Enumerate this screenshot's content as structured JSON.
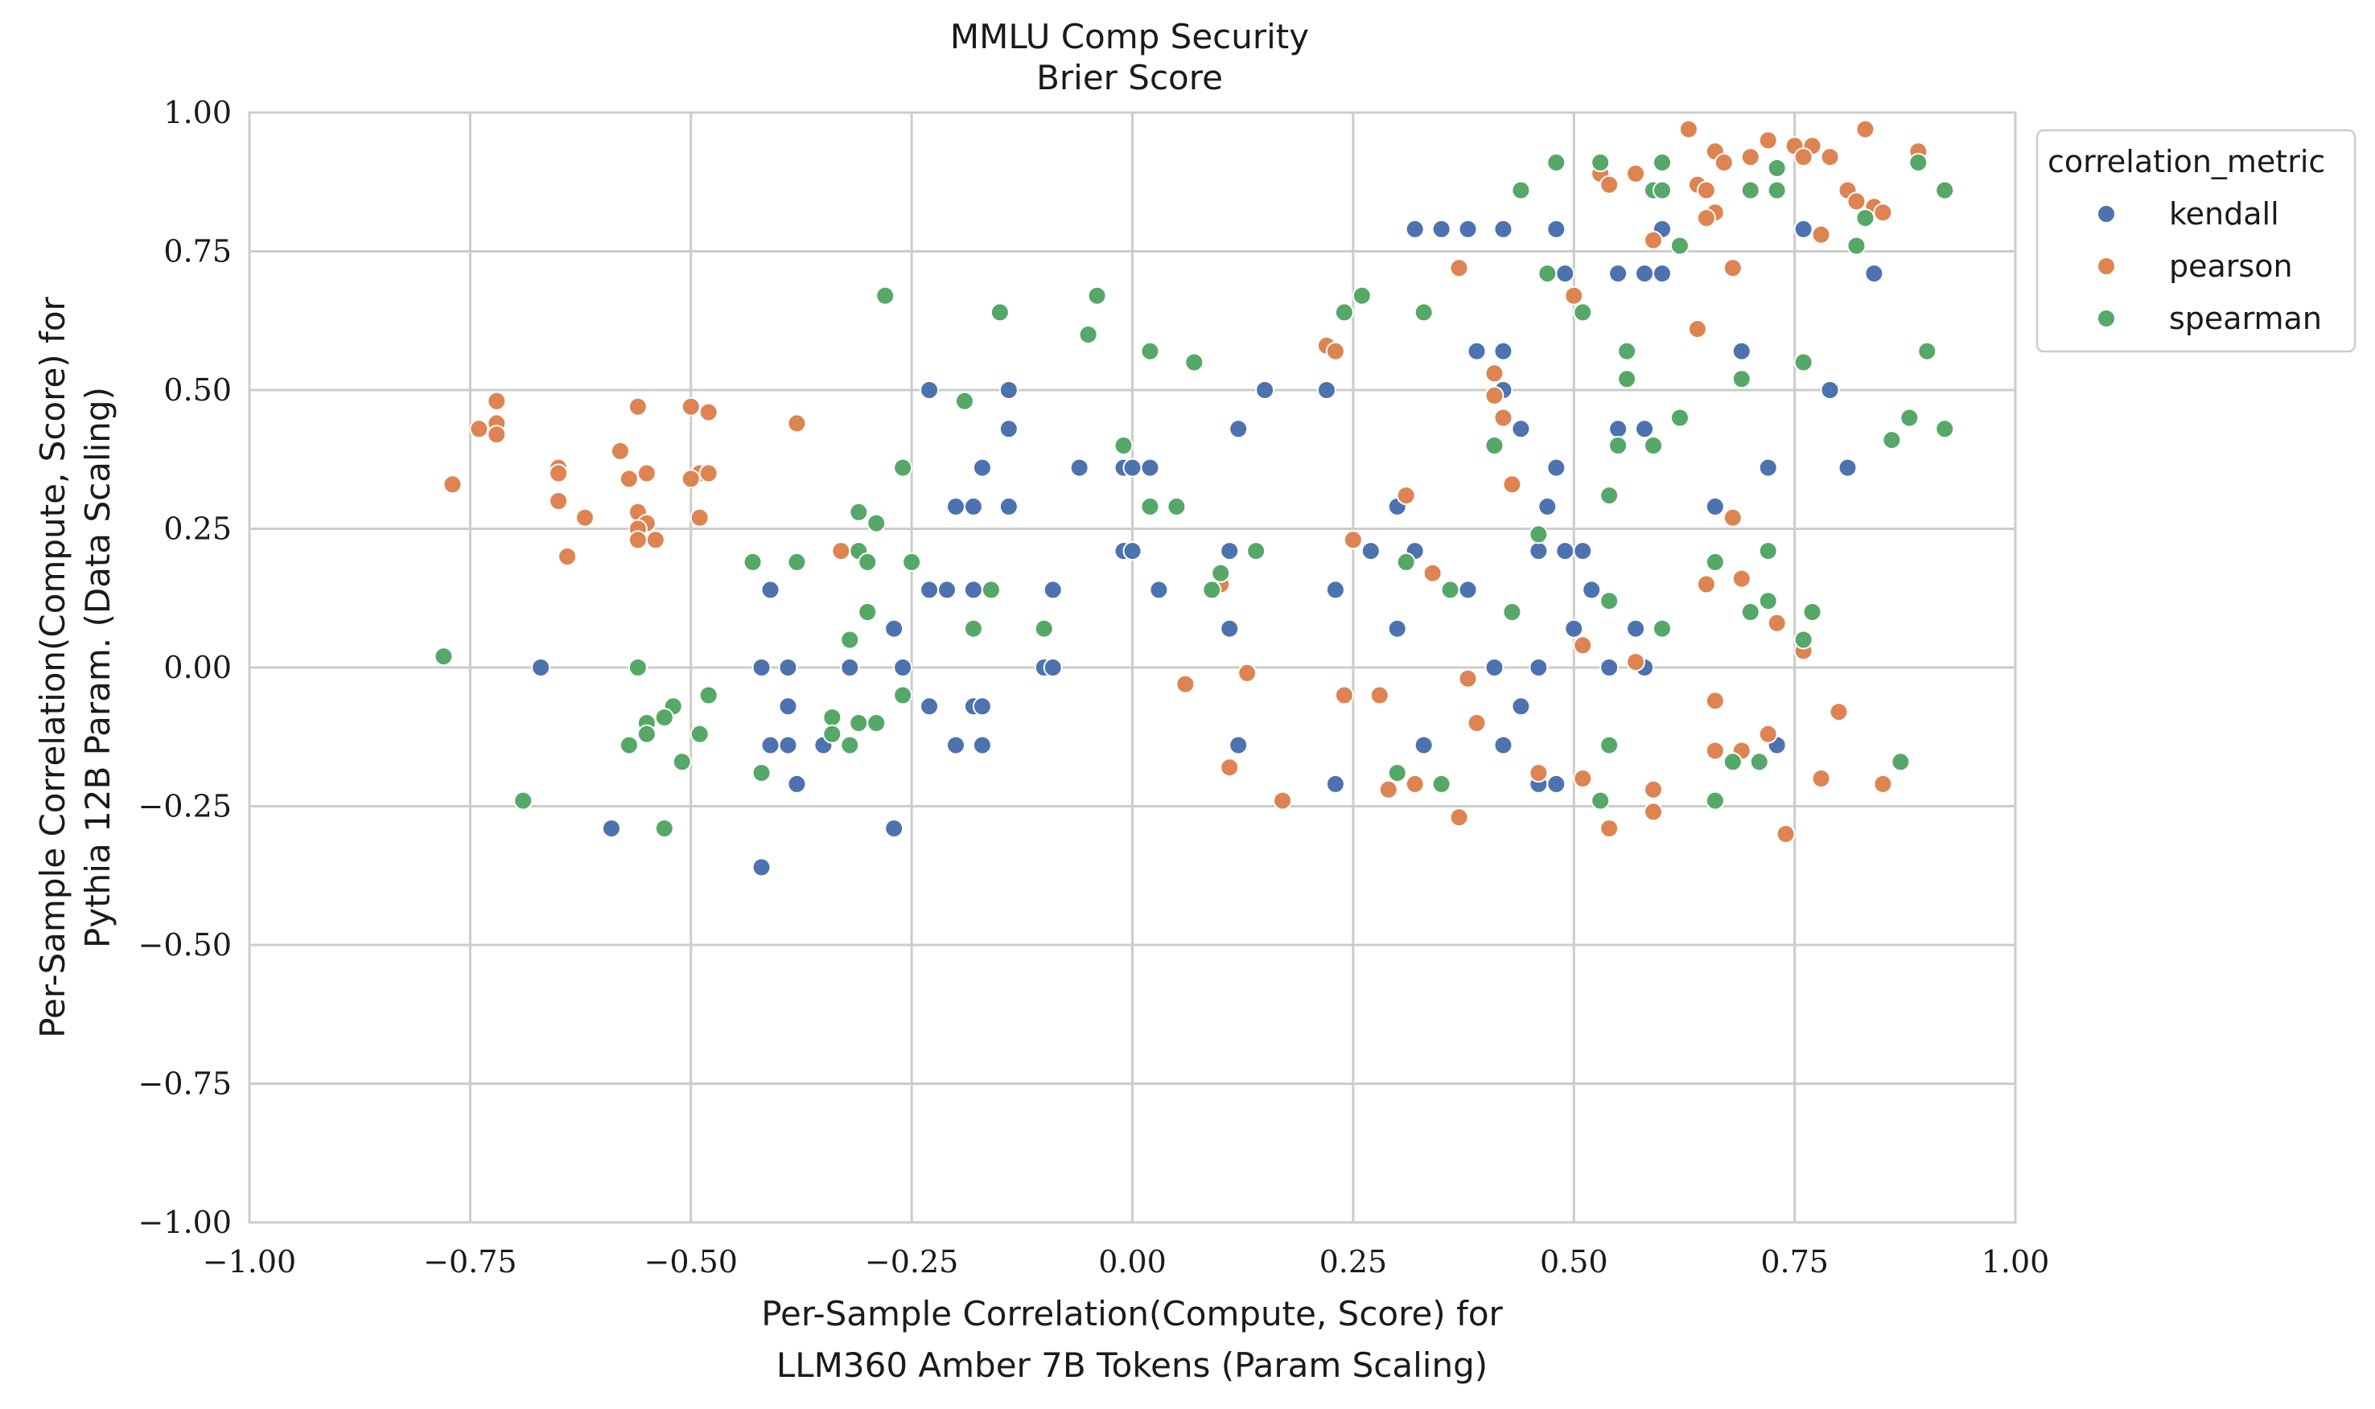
{
  "chart_data": {
    "type": "scatter",
    "title": "MMLU Comp Security",
    "subtitle": "Brier Score",
    "xlabel_line1": "Per-Sample Correlation(Compute, Score) for",
    "xlabel_line2": "LLM360 Amber 7B Tokens (Param Scaling)",
    "ylabel_line1": "Per-Sample Correlation(Compute, Score) for",
    "ylabel_line2": "Pythia 12B Param. (Data Scaling)",
    "xlim": [
      -1.0,
      1.0
    ],
    "ylim": [
      -1.0,
      1.0
    ],
    "x_ticks": [
      "−1.00",
      "−0.75",
      "−0.50",
      "−0.25",
      "0.00",
      "0.25",
      "0.50",
      "0.75",
      "1.00"
    ],
    "y_ticks": [
      "−1.00",
      "−0.75",
      "−0.50",
      "−0.25",
      "0.00",
      "0.25",
      "0.50",
      "0.75",
      "1.00"
    ],
    "grid": true,
    "legend": {
      "title": "correlation_metric",
      "placement": "outside-right-top"
    },
    "series": [
      {
        "name": "kendall",
        "color": "#4c72b0",
        "points": [
          [
            0.32,
            0.79
          ],
          [
            0.35,
            0.79
          ],
          [
            0.38,
            0.79
          ],
          [
            0.42,
            0.79
          ],
          [
            0.48,
            0.79
          ],
          [
            0.6,
            0.79
          ],
          [
            0.76,
            0.79
          ],
          [
            0.49,
            0.71
          ],
          [
            0.55,
            0.71
          ],
          [
            0.58,
            0.71
          ],
          [
            0.6,
            0.71
          ],
          [
            0.84,
            0.71
          ],
          [
            -0.23,
            0.5
          ],
          [
            -0.14,
            0.5
          ],
          [
            0.15,
            0.5
          ],
          [
            0.22,
            0.5
          ],
          [
            0.42,
            0.5
          ],
          [
            0.79,
            0.5
          ],
          [
            0.39,
            0.57
          ],
          [
            0.42,
            0.57
          ],
          [
            0.69,
            0.57
          ],
          [
            -0.14,
            0.43
          ],
          [
            0.12,
            0.43
          ],
          [
            0.44,
            0.43
          ],
          [
            0.55,
            0.43
          ],
          [
            0.58,
            0.43
          ],
          [
            -0.17,
            0.36
          ],
          [
            -0.06,
            0.36
          ],
          [
            -0.01,
            0.36
          ],
          [
            0.0,
            0.36
          ],
          [
            0.02,
            0.36
          ],
          [
            0.48,
            0.36
          ],
          [
            0.72,
            0.36
          ],
          [
            0.81,
            0.36
          ],
          [
            -0.2,
            0.29
          ],
          [
            -0.18,
            0.29
          ],
          [
            -0.14,
            0.29
          ],
          [
            0.3,
            0.29
          ],
          [
            0.47,
            0.29
          ],
          [
            0.66,
            0.29
          ],
          [
            -0.01,
            0.21
          ],
          [
            0.0,
            0.21
          ],
          [
            0.11,
            0.21
          ],
          [
            0.27,
            0.21
          ],
          [
            0.32,
            0.21
          ],
          [
            0.46,
            0.21
          ],
          [
            0.49,
            0.21
          ],
          [
            0.51,
            0.21
          ],
          [
            -0.41,
            0.14
          ],
          [
            -0.23,
            0.14
          ],
          [
            -0.21,
            0.14
          ],
          [
            -0.18,
            0.14
          ],
          [
            -0.16,
            0.14
          ],
          [
            -0.09,
            0.14
          ],
          [
            0.03,
            0.14
          ],
          [
            0.23,
            0.14
          ],
          [
            0.38,
            0.14
          ],
          [
            0.52,
            0.14
          ],
          [
            -0.27,
            0.07
          ],
          [
            0.11,
            0.07
          ],
          [
            0.3,
            0.07
          ],
          [
            0.5,
            0.07
          ],
          [
            0.57,
            0.07
          ],
          [
            -0.67,
            0.0
          ],
          [
            -0.42,
            0.0
          ],
          [
            -0.39,
            0.0
          ],
          [
            -0.32,
            0.0
          ],
          [
            -0.26,
            0.0
          ],
          [
            -0.1,
            0.0
          ],
          [
            -0.09,
            0.0
          ],
          [
            0.41,
            0.0
          ],
          [
            0.46,
            0.0
          ],
          [
            0.54,
            0.0
          ],
          [
            0.58,
            0.0
          ],
          [
            -0.39,
            -0.07
          ],
          [
            -0.23,
            -0.07
          ],
          [
            -0.18,
            -0.07
          ],
          [
            -0.17,
            -0.07
          ],
          [
            0.44,
            -0.07
          ],
          [
            -0.41,
            -0.14
          ],
          [
            -0.39,
            -0.14
          ],
          [
            -0.35,
            -0.14
          ],
          [
            -0.2,
            -0.14
          ],
          [
            -0.17,
            -0.14
          ],
          [
            0.12,
            -0.14
          ],
          [
            0.33,
            -0.14
          ],
          [
            0.42,
            -0.14
          ],
          [
            0.73,
            -0.14
          ],
          [
            -0.38,
            -0.21
          ],
          [
            0.23,
            -0.21
          ],
          [
            0.46,
            -0.21
          ],
          [
            0.48,
            -0.21
          ],
          [
            -0.59,
            -0.29
          ],
          [
            -0.27,
            -0.29
          ],
          [
            -0.42,
            -0.36
          ]
        ]
      },
      {
        "name": "pearson",
        "color": "#dd8452",
        "points": [
          [
            0.63,
            0.97
          ],
          [
            0.83,
            0.97
          ],
          [
            0.72,
            0.95
          ],
          [
            0.75,
            0.94
          ],
          [
            0.77,
            0.94
          ],
          [
            0.66,
            0.93
          ],
          [
            0.89,
            0.93
          ],
          [
            0.67,
            0.91
          ],
          [
            0.7,
            0.92
          ],
          [
            0.76,
            0.92
          ],
          [
            0.79,
            0.92
          ],
          [
            0.53,
            0.89
          ],
          [
            0.57,
            0.89
          ],
          [
            0.54,
            0.87
          ],
          [
            0.64,
            0.87
          ],
          [
            0.65,
            0.86
          ],
          [
            0.81,
            0.86
          ],
          [
            0.82,
            0.84
          ],
          [
            0.84,
            0.83
          ],
          [
            0.66,
            0.82
          ],
          [
            0.85,
            0.82
          ],
          [
            0.65,
            0.81
          ],
          [
            0.59,
            0.77
          ],
          [
            0.78,
            0.78
          ],
          [
            0.37,
            0.72
          ],
          [
            0.68,
            0.72
          ],
          [
            0.5,
            0.67
          ],
          [
            0.64,
            0.61
          ],
          [
            0.22,
            0.58
          ],
          [
            0.23,
            0.57
          ],
          [
            0.41,
            0.53
          ],
          [
            0.41,
            0.49
          ],
          [
            -0.72,
            0.48
          ],
          [
            -0.56,
            0.47
          ],
          [
            -0.5,
            0.47
          ],
          [
            -0.48,
            0.46
          ],
          [
            -0.72,
            0.44
          ],
          [
            -0.74,
            0.43
          ],
          [
            -0.72,
            0.42
          ],
          [
            -0.38,
            0.44
          ],
          [
            0.42,
            0.45
          ],
          [
            -0.58,
            0.39
          ],
          [
            -0.65,
            0.36
          ],
          [
            -0.65,
            0.35
          ],
          [
            -0.55,
            0.35
          ],
          [
            -0.49,
            0.35
          ],
          [
            -0.48,
            0.35
          ],
          [
            -0.5,
            0.34
          ],
          [
            -0.77,
            0.33
          ],
          [
            -0.57,
            0.34
          ],
          [
            0.43,
            0.33
          ],
          [
            0.31,
            0.31
          ],
          [
            -0.65,
            0.3
          ],
          [
            -0.56,
            0.28
          ],
          [
            -0.62,
            0.27
          ],
          [
            -0.49,
            0.27
          ],
          [
            -0.55,
            0.26
          ],
          [
            -0.56,
            0.25
          ],
          [
            -0.56,
            0.23
          ],
          [
            -0.54,
            0.23
          ],
          [
            -0.33,
            0.21
          ],
          [
            -0.64,
            0.2
          ],
          [
            0.25,
            0.23
          ],
          [
            0.68,
            0.27
          ],
          [
            0.34,
            0.17
          ],
          [
            0.69,
            0.16
          ],
          [
            0.65,
            0.15
          ],
          [
            0.1,
            0.15
          ],
          [
            0.73,
            0.08
          ],
          [
            0.76,
            0.03
          ],
          [
            0.51,
            0.04
          ],
          [
            0.57,
            0.01
          ],
          [
            0.13,
            -0.01
          ],
          [
            0.38,
            -0.02
          ],
          [
            0.06,
            -0.03
          ],
          [
            0.24,
            -0.05
          ],
          [
            0.28,
            -0.05
          ],
          [
            0.66,
            -0.06
          ],
          [
            0.8,
            -0.08
          ],
          [
            0.39,
            -0.1
          ],
          [
            0.72,
            -0.12
          ],
          [
            0.66,
            -0.15
          ],
          [
            0.69,
            -0.15
          ],
          [
            0.11,
            -0.18
          ],
          [
            0.46,
            -0.19
          ],
          [
            0.51,
            -0.2
          ],
          [
            0.78,
            -0.2
          ],
          [
            0.29,
            -0.22
          ],
          [
            0.32,
            -0.21
          ],
          [
            0.59,
            -0.22
          ],
          [
            0.85,
            -0.21
          ],
          [
            0.17,
            -0.24
          ],
          [
            0.37,
            -0.27
          ],
          [
            0.59,
            -0.26
          ],
          [
            0.54,
            -0.29
          ],
          [
            0.74,
            -0.3
          ]
        ]
      },
      {
        "name": "spearman",
        "color": "#55a868",
        "points": [
          [
            0.48,
            0.91
          ],
          [
            0.53,
            0.91
          ],
          [
            0.6,
            0.91
          ],
          [
            0.73,
            0.9
          ],
          [
            0.89,
            0.91
          ],
          [
            0.44,
            0.86
          ],
          [
            0.59,
            0.86
          ],
          [
            0.6,
            0.86
          ],
          [
            0.7,
            0.86
          ],
          [
            0.73,
            0.86
          ],
          [
            0.92,
            0.86
          ],
          [
            0.83,
            0.81
          ],
          [
            0.82,
            0.76
          ],
          [
            0.62,
            0.76
          ],
          [
            0.47,
            0.71
          ],
          [
            -0.28,
            0.67
          ],
          [
            -0.04,
            0.67
          ],
          [
            0.26,
            0.67
          ],
          [
            0.24,
            0.64
          ],
          [
            -0.15,
            0.64
          ],
          [
            0.33,
            0.64
          ],
          [
            0.51,
            0.64
          ],
          [
            -0.05,
            0.6
          ],
          [
            0.02,
            0.57
          ],
          [
            0.07,
            0.55
          ],
          [
            0.56,
            0.57
          ],
          [
            0.76,
            0.55
          ],
          [
            0.9,
            0.57
          ],
          [
            0.56,
            0.52
          ],
          [
            0.69,
            0.52
          ],
          [
            -0.19,
            0.48
          ],
          [
            0.62,
            0.45
          ],
          [
            0.88,
            0.45
          ],
          [
            0.92,
            0.43
          ],
          [
            -0.01,
            0.4
          ],
          [
            0.41,
            0.4
          ],
          [
            0.55,
            0.4
          ],
          [
            0.59,
            0.4
          ],
          [
            0.86,
            0.41
          ],
          [
            -0.26,
            0.36
          ],
          [
            -0.31,
            0.28
          ],
          [
            0.02,
            0.29
          ],
          [
            0.05,
            0.29
          ],
          [
            0.54,
            0.31
          ],
          [
            -0.29,
            0.26
          ],
          [
            -0.31,
            0.21
          ],
          [
            0.14,
            0.21
          ],
          [
            0.46,
            0.24
          ],
          [
            0.72,
            0.21
          ],
          [
            -0.43,
            0.19
          ],
          [
            -0.38,
            0.19
          ],
          [
            -0.3,
            0.19
          ],
          [
            -0.25,
            0.19
          ],
          [
            0.31,
            0.19
          ],
          [
            0.66,
            0.19
          ],
          [
            0.1,
            0.17
          ],
          [
            -0.16,
            0.14
          ],
          [
            0.09,
            0.14
          ],
          [
            0.36,
            0.14
          ],
          [
            0.54,
            0.12
          ],
          [
            0.72,
            0.12
          ],
          [
            -0.3,
            0.1
          ],
          [
            0.43,
            0.1
          ],
          [
            0.7,
            0.1
          ],
          [
            0.77,
            0.1
          ],
          [
            -0.18,
            0.07
          ],
          [
            -0.1,
            0.07
          ],
          [
            0.6,
            0.07
          ],
          [
            -0.32,
            0.05
          ],
          [
            0.76,
            0.05
          ],
          [
            -0.78,
            0.02
          ],
          [
            -0.56,
            0.0
          ],
          [
            -0.26,
            -0.05
          ],
          [
            -0.48,
            -0.05
          ],
          [
            -0.52,
            -0.07
          ],
          [
            -0.55,
            -0.1
          ],
          [
            -0.53,
            -0.09
          ],
          [
            -0.34,
            -0.09
          ],
          [
            -0.31,
            -0.1
          ],
          [
            -0.29,
            -0.1
          ],
          [
            -0.55,
            -0.12
          ],
          [
            -0.34,
            -0.12
          ],
          [
            -0.49,
            -0.12
          ],
          [
            -0.57,
            -0.14
          ],
          [
            -0.32,
            -0.14
          ],
          [
            0.54,
            -0.14
          ],
          [
            -0.51,
            -0.17
          ],
          [
            0.68,
            -0.17
          ],
          [
            0.71,
            -0.17
          ],
          [
            0.87,
            -0.17
          ],
          [
            -0.42,
            -0.19
          ],
          [
            0.3,
            -0.19
          ],
          [
            0.35,
            -0.21
          ],
          [
            0.53,
            -0.24
          ],
          [
            0.66,
            -0.24
          ],
          [
            -0.69,
            -0.24
          ],
          [
            -0.53,
            -0.29
          ]
        ]
      }
    ]
  }
}
